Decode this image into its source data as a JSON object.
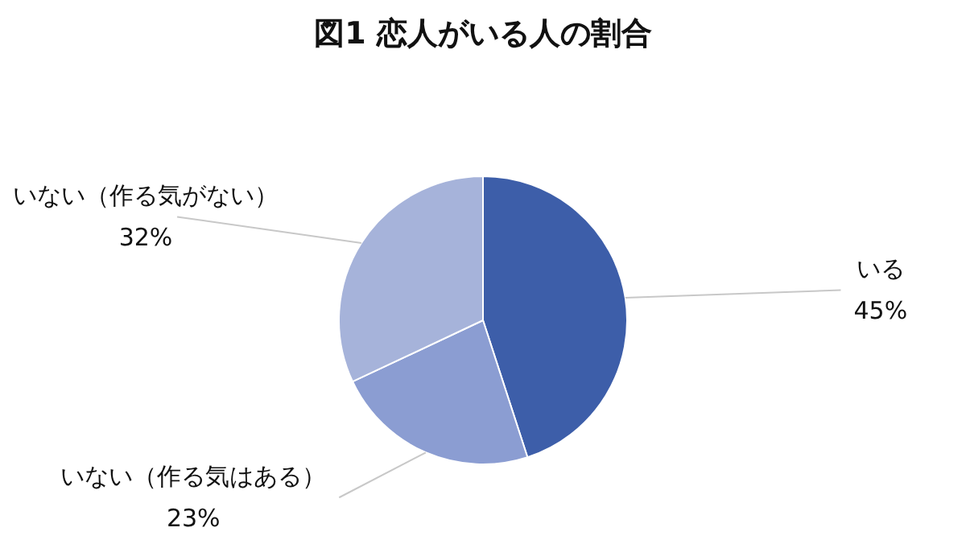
{
  "chart_data": {
    "type": "pie",
    "title": "図1 恋人がいる人の割合",
    "categories": [
      "いる",
      "いない（作る気はある）",
      "いない（作る気がない）"
    ],
    "values": [
      45,
      23,
      32
    ],
    "value_labels": [
      "45%",
      "23%",
      "32%"
    ],
    "colors": [
      "#3d5ea9",
      "#8b9dd2",
      "#a6b3da"
    ],
    "legend": false
  }
}
